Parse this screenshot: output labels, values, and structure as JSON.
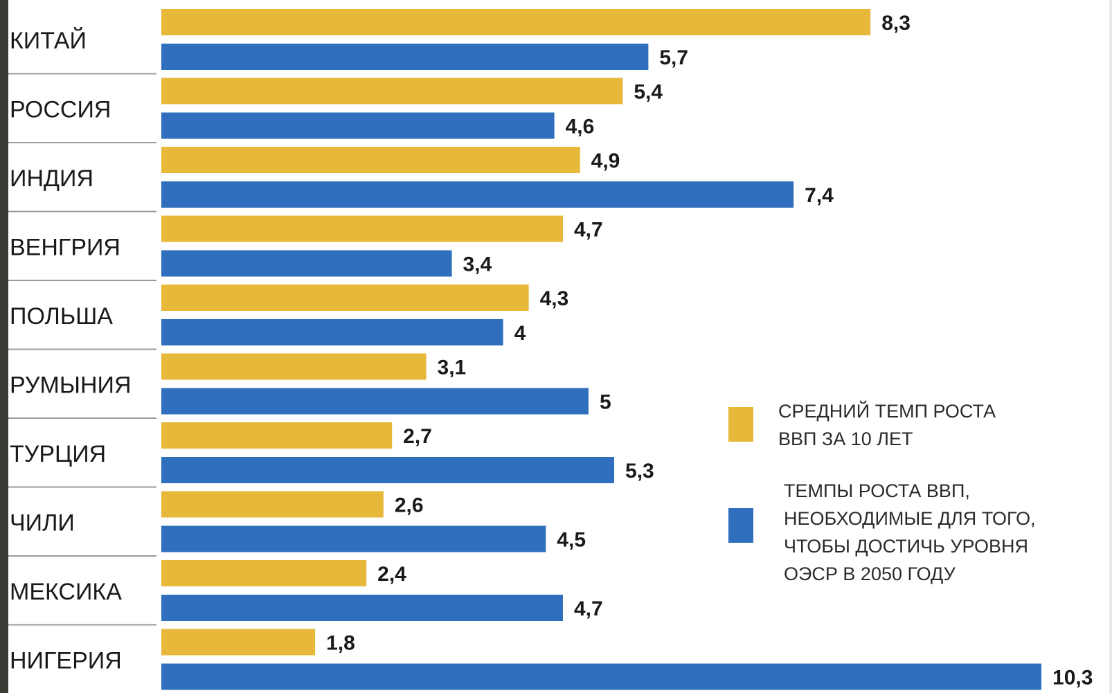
{
  "chart_data": {
    "type": "bar",
    "orientation": "horizontal",
    "categories": [
      "КИТАЙ",
      "РОССИЯ",
      "ИНДИЯ",
      "ВЕНГРИЯ",
      "ПОЛЬША",
      "РУМЫНИЯ",
      "ТУРЦИЯ",
      "ЧИЛИ",
      "МЕКСИКА",
      "НИГЕРИЯ"
    ],
    "series": [
      {
        "name": "СРЕДНИЙ ТЕМП РОСТА ВВП ЗА 10 ЛЕТ",
        "values": [
          8.3,
          5.4,
          4.9,
          4.7,
          4.3,
          3.1,
          2.7,
          2.6,
          2.4,
          1.8
        ],
        "value_labels": [
          "8,3",
          "5,4",
          "4,9",
          "4,7",
          "4,3",
          "3,1",
          "2,7",
          "2,6",
          "2,4",
          "1,8"
        ],
        "color": "#e8b83a"
      },
      {
        "name": "ТЕМПЫ РОСТА ВВП, НЕОБХОДИМЫЕ ДЛЯ ТОГО, ЧТОБЫ ДОСТИЧЬ УРОВНЯ ОЭСР В 2050 ГОДУ",
        "values": [
          5.7,
          4.6,
          7.4,
          3.4,
          4,
          5,
          5.3,
          4.5,
          4.7,
          10.3
        ],
        "value_labels": [
          "5,7",
          "4,6",
          "7,4",
          "3,4",
          "4",
          "5",
          "5,3",
          "4,5",
          "4,7",
          "10,3"
        ],
        "color": "#2f6fbd"
      }
    ],
    "legend": {
      "placement": "right",
      "entries": [
        {
          "lines": [
            "СРЕДНИЙ ТЕМП РОСТА",
            "ВВП ЗА 10 ЛЕТ"
          ],
          "color": "#e8b83a"
        },
        {
          "lines": [
            "ТЕМПЫ РОСТА ВВП,",
            "НЕОБХОДИМЫЕ ДЛЯ ТОГО,",
            "ЧТОБЫ ДОСТИЧЬ УРОВНЯ",
            "ОЭСР В 2050 ГОДУ"
          ],
          "color": "#2f6fbd"
        }
      ]
    },
    "xlim": [
      0,
      10.3
    ],
    "grid": false,
    "title": "",
    "xlabel": "",
    "ylabel": ""
  }
}
